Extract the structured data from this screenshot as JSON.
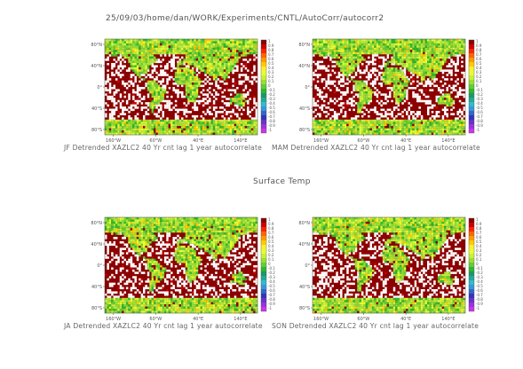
{
  "header": {
    "path": "25/09/03/home/dan/WORK/Experiments/CNTL/AutoCorr/autocorr2",
    "center_label": "Surface Temp"
  },
  "colors": {
    "ocean_dark_red": "#8b0000",
    "white_gap": "#ffffff",
    "polar_green": "#66cc33"
  },
  "chart_data": [
    {
      "type": "heatmap",
      "title": "JF Detrended XAZLC2 40 Yr cnt lag 1 year autocorrelate",
      "x_ticks": [
        "160°W",
        "60°W",
        "40°E",
        "140°E"
      ],
      "y_ticks": [
        "80°N",
        "40°N",
        "0°",
        "40°S",
        "80°S"
      ],
      "legend_type": "colorbar"
    },
    {
      "type": "heatmap",
      "title": "MAM Detrended XAZLC2 40 Yr cnt lag 1 year autocorrelate",
      "x_ticks": [
        "160°W",
        "60°W",
        "40°E",
        "140°E"
      ],
      "y_ticks": [
        "80°N",
        "40°N",
        "0°",
        "40°S",
        "80°S"
      ],
      "legend_type": "colorbar"
    },
    {
      "type": "heatmap",
      "title": "JA Detrended XAZLC2 40 Yr cnt lag 1 year autocorrelate",
      "x_ticks": [
        "160°W",
        "60°W",
        "40°E",
        "140°E"
      ],
      "y_ticks": [
        "80°N",
        "40°N",
        "0°",
        "40°S",
        "80°S"
      ],
      "legend_type": "colorbar"
    },
    {
      "type": "heatmap",
      "title": "SON Detrended XAZLC2 40 Yr cnt lag 1 year autocorrelate",
      "x_ticks": [
        "160°W",
        "60°W",
        "40°E",
        "140°E"
      ],
      "y_ticks": [
        "80°N",
        "40°N",
        "0°",
        "40°S",
        "80°S"
      ],
      "legend_type": "colorbar"
    }
  ],
  "colorbar": {
    "labels": [
      "1",
      "0.9",
      "0.8",
      "0.7",
      "0.6",
      "0.5",
      "0.4",
      "0.3",
      "0.2",
      "0.1",
      "0",
      "-0.1",
      "-0.2",
      "-0.3",
      "-0.4",
      "-0.5",
      "-0.6",
      "-0.7",
      "-0.8",
      "-0.9",
      "-1"
    ],
    "colors": [
      "#8b0000",
      "#cc0000",
      "#ff2200",
      "#ff6600",
      "#ff9900",
      "#ffcc00",
      "#ffee33",
      "#e6ff33",
      "#c8f03c",
      "#99e033",
      "#66cc33",
      "#2eb82e",
      "#1a9966",
      "#22aa99",
      "#33bbcc",
      "#3399dd",
      "#3366cc",
      "#3333bb",
      "#6633cc",
      "#9933dd",
      "#cc33ee"
    ]
  }
}
